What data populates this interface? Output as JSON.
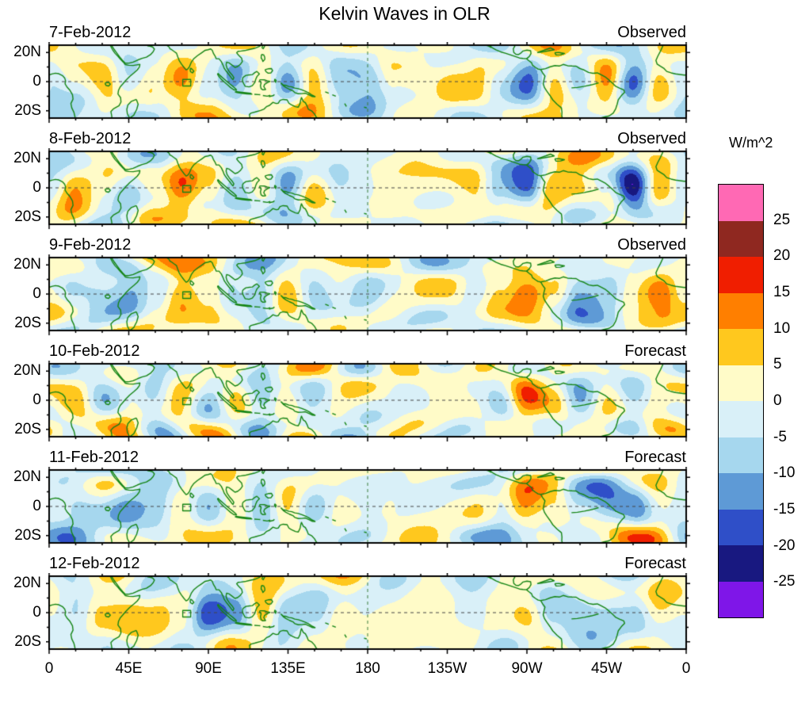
{
  "title": "Kelvin Waves in OLR",
  "colorbar": {
    "units_label": "W/m^2",
    "tick_labels": [
      "25",
      "20",
      "15",
      "10",
      "5",
      "0",
      "-5",
      "-10",
      "-15",
      "-20",
      "-25"
    ],
    "levels": [
      -25,
      -20,
      -15,
      -10,
      -5,
      0,
      5,
      10,
      15,
      20,
      25
    ]
  },
  "axes": {
    "y_tick_labels": [
      "20N",
      "0",
      "20S"
    ],
    "y_tick_lats": [
      20,
      0,
      -20
    ],
    "x_tick_labels": [
      "0",
      "45E",
      "90E",
      "135E",
      "180",
      "135W",
      "90W",
      "45W",
      "0"
    ],
    "x_tick_lons": [
      0,
      45,
      90,
      135,
      180,
      225,
      270,
      315,
      360
    ],
    "lon_range_deg_east": [
      0,
      360
    ],
    "lat_range_deg": [
      -25,
      25
    ]
  },
  "panels": [
    {
      "date": "7-Feb-2012",
      "source": "Observed"
    },
    {
      "date": "8-Feb-2012",
      "source": "Observed"
    },
    {
      "date": "9-Feb-2012",
      "source": "Observed"
    },
    {
      "date": "10-Feb-2012",
      "source": "Forecast"
    },
    {
      "date": "11-Feb-2012",
      "source": "Forecast"
    },
    {
      "date": "12-Feb-2012",
      "source": "Forecast"
    }
  ],
  "chart_data": {
    "type": "heatmap",
    "subtype": "filled-contour longitude-latitude anomaly maps, 6 stacked daily panels",
    "title": "Kelvin Waves in OLR",
    "units": "W/m^2",
    "contour_levels": [
      -25,
      -20,
      -15,
      -10,
      -5,
      0,
      5,
      10,
      15,
      20,
      25
    ],
    "band_colors_low_to_high": [
      "#7F16E8",
      "#181880",
      "#2F4FC8",
      "#5E9AD6",
      "#A6D7EE",
      "#D9F0F8",
      "#FFFBC8",
      "#FFC81E",
      "#FF7F00",
      "#F01E00",
      "#8F2820",
      "#FF69B4"
    ],
    "lon_range_deg_east": [
      0,
      360
    ],
    "lat_range_deg": [
      -25,
      25
    ],
    "grid_lines": {
      "equator_dashed": true,
      "dateline_dashed": true
    },
    "region_box": {
      "lon_min": 75.5,
      "lon_max": 80,
      "lat_min": -3,
      "lat_max": 1.5
    },
    "profile_lons_deg": [
      0,
      15,
      30,
      45,
      60,
      75,
      90,
      105,
      120,
      135,
      150,
      165,
      180,
      195,
      210,
      225,
      240,
      255,
      270,
      285,
      300,
      315,
      330,
      345,
      360
    ],
    "panels": [
      {
        "date": "7-Feb-2012",
        "source": "Observed",
        "equator_profile_wm2": [
          -4,
          2,
          6,
          -8,
          2,
          13,
          1,
          -8,
          6,
          -14,
          7,
          -6,
          -9,
          2,
          4,
          6,
          2,
          -6,
          -12,
          9,
          -10,
          8,
          -18,
          6,
          -4
        ]
      },
      {
        "date": "8-Feb-2012",
        "source": "Observed",
        "equator_profile_wm2": [
          -6,
          8,
          1,
          -8,
          2,
          16,
          5,
          -7,
          6,
          -12,
          6,
          -5,
          -3,
          2,
          3,
          2,
          5,
          -8,
          -16,
          10,
          8,
          1,
          -24,
          8,
          -6
        ]
      },
      {
        "date": "9-Feb-2012",
        "source": "Observed",
        "equator_profile_wm2": [
          1,
          -6,
          -8,
          -10,
          1,
          14,
          6,
          -8,
          -12,
          6,
          -6,
          1,
          -4,
          2,
          2,
          1,
          -6,
          5,
          14,
          6,
          -10,
          -8,
          4,
          12,
          1
        ]
      },
      {
        "date": "10-Feb-2012",
        "source": "Forecast",
        "equator_profile_wm2": [
          1,
          5,
          -6,
          4,
          -8,
          5,
          -6,
          6,
          -10,
          5,
          -4,
          1,
          -2,
          1,
          2,
          4,
          1,
          -5,
          13,
          6,
          -8,
          5,
          -8,
          4,
          1
        ]
      },
      {
        "date": "11-Feb-2012",
        "source": "Forecast",
        "equator_profile_wm2": [
          -6,
          -10,
          -6,
          -12,
          -10,
          4,
          -6,
          6,
          -10,
          5,
          -8,
          1,
          -3,
          1,
          2,
          1,
          1,
          -5,
          10,
          5,
          -6,
          -10,
          -8,
          4,
          -6
        ]
      },
      {
        "date": "12-Feb-2012",
        "source": "Forecast",
        "equator_profile_wm2": [
          1,
          -6,
          5,
          7,
          5,
          0,
          -18,
          -10,
          8,
          -10,
          -6,
          4,
          0,
          1,
          2,
          1,
          -4,
          1,
          6,
          -6,
          -10,
          -8,
          -6,
          6,
          1
        ]
      }
    ]
  }
}
